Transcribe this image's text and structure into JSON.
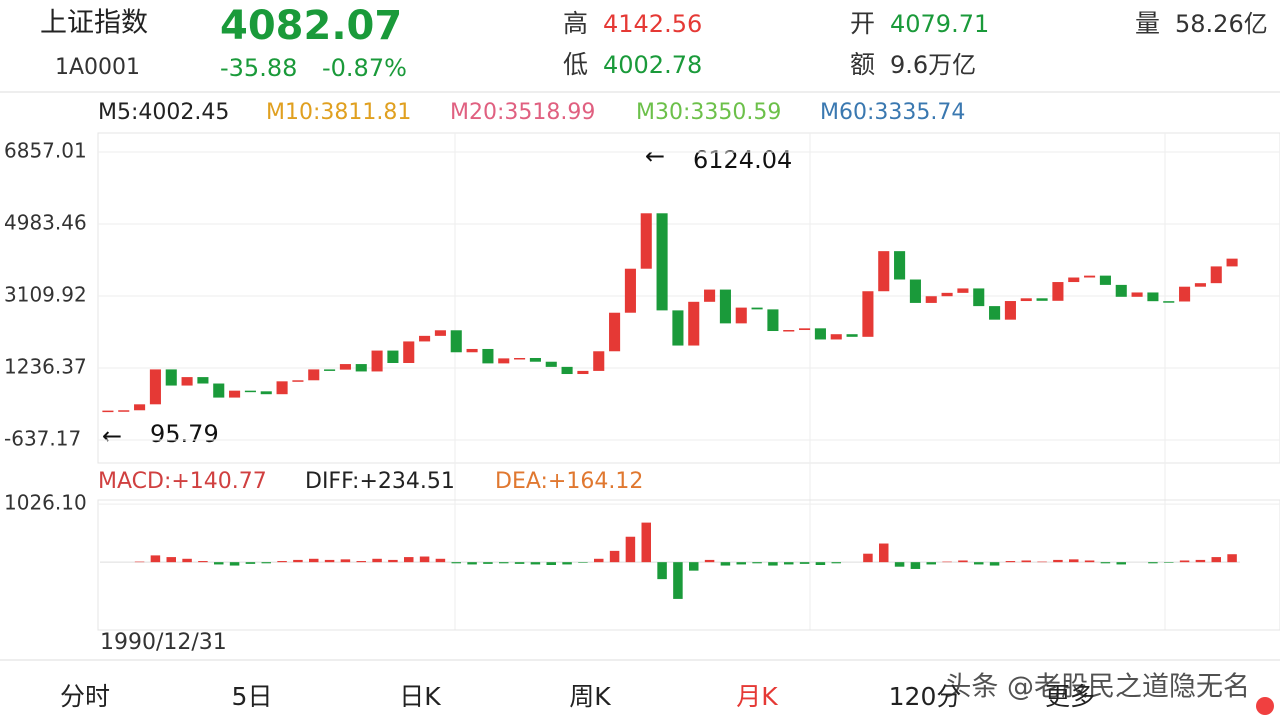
{
  "header": {
    "name": "上证指数",
    "code": "1A0001",
    "price": "4082.07",
    "change": "-35.88",
    "change_pct": "-0.87%",
    "high_label": "高",
    "high": "4142.56",
    "low_label": "低",
    "low": "4002.78",
    "open_label": "开",
    "open": "4079.71",
    "amount_label": "额",
    "amount": "9.6万亿",
    "volume_label": "量",
    "volume": "58.26亿"
  },
  "ma_legend": [
    "M5:4002.45",
    "M10:3811.81",
    "M20:3518.99",
    "M30:3350.59",
    "M60:3335.74"
  ],
  "macd_legend": [
    "MACD:+140.77",
    "DIFF:+234.51",
    "DEA:+164.12"
  ],
  "chart_data": [
    {
      "type": "candlestick",
      "ylim": [
        -1235,
        7351
      ],
      "yticks": [
        6857.01,
        4983.46,
        3109.92,
        1236.37,
        -637.17
      ],
      "max_label": 6124.04,
      "min_label": 95.79,
      "up_color": "#e53935",
      "down_color": "#1a9a3a",
      "categories": [
        "1990/12/31",
        null,
        null,
        null,
        null,
        null,
        null,
        null,
        null,
        null,
        null,
        null,
        null,
        null,
        null,
        null,
        null,
        null,
        null,
        null,
        null,
        null,
        null,
        null,
        null,
        null,
        null,
        null,
        null,
        null,
        null,
        null,
        null,
        null,
        null,
        null,
        null,
        null,
        null,
        null,
        null,
        null,
        null,
        null,
        null,
        null,
        null,
        null,
        null,
        null,
        null,
        null,
        null,
        null,
        null,
        null,
        null,
        null,
        null,
        null,
        null,
        null,
        null,
        null,
        null,
        null,
        null,
        null,
        null,
        null,
        null,
        null
      ],
      "values": [
        128,
        137,
        292,
        1200,
        780,
        1000,
        833,
        467,
        647,
        630,
        555,
        890,
        917,
        1200,
        1194,
        1339,
        1147,
        1690,
        1367,
        1928,
        2073,
        2218,
        1646,
        1732,
        1357,
        1487,
        1497,
        1400,
        1266,
        1080,
        1161,
        1672,
        2675,
        3820,
        5262,
        2736,
        1821,
        2959,
        3277,
        2398,
        2808,
        2762,
        2199,
        2225,
        2269,
        1979,
        2116,
        2048,
        3234,
        4277,
        3539,
        2930,
        3104,
        3192,
        3307,
        2847,
        2494,
        2979,
        3050,
        2985,
        3473,
        3591,
        3640,
        3399,
        3089,
        3202,
        2975,
        2967,
        3352,
        3444,
        3880,
        4082
      ]
    },
    {
      "type": "histogram",
      "ylim": [
        -1200,
        1100
      ],
      "yticks": [
        {
          "value": 1026.1,
          "label": "1026.10"
        }
      ],
      "up_color": "#e53935",
      "down_color": "#1a9a3a",
      "values": [
        0,
        0,
        10,
        120,
        90,
        60,
        20,
        -40,
        -60,
        -30,
        -20,
        20,
        40,
        60,
        40,
        50,
        20,
        60,
        40,
        90,
        100,
        60,
        -20,
        -40,
        -30,
        -20,
        -30,
        -40,
        -50,
        -40,
        -10,
        60,
        200,
        450,
        700,
        -300,
        -650,
        -150,
        40,
        -60,
        -40,
        -20,
        -60,
        -40,
        -30,
        -50,
        -20,
        0,
        150,
        330,
        -80,
        -120,
        -40,
        10,
        30,
        -40,
        -60,
        20,
        30,
        10,
        40,
        50,
        30,
        -20,
        -40,
        0,
        -20,
        -10,
        30,
        40,
        90,
        140.77
      ]
    }
  ],
  "tabs": [
    "分时",
    "5日",
    "日K",
    "周K",
    "月K",
    "120分",
    "更多"
  ],
  "watermark": "头条 @老股民之道隐无名"
}
